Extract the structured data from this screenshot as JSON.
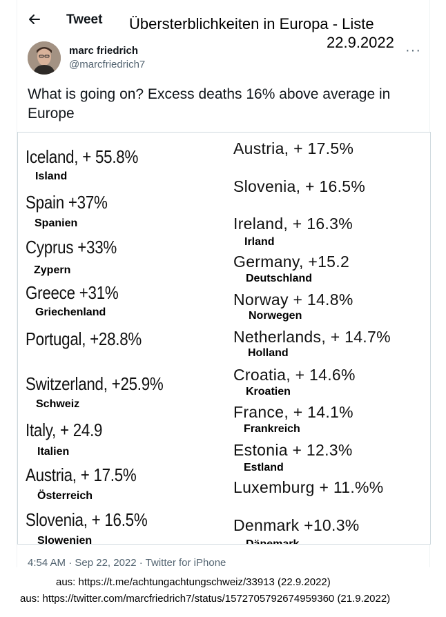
{
  "header": {
    "title": "Tweet"
  },
  "overlay": {
    "title": "Übersterblichkeiten in Europa - Liste",
    "date": "22.9.2022"
  },
  "author": {
    "name": "marc friedrich",
    "handle": "@marcfriedrich7"
  },
  "tweet": {
    "text": "What is going on? Excess deaths 16% above average in Europe"
  },
  "list_left": [
    {
      "country": "Iceland, + 55.8%",
      "label": "Island"
    },
    {
      "country": "Spain +37%",
      "label": "Spanien"
    },
    {
      "country": "Cyprus +33%",
      "label": "Zypern"
    },
    {
      "country": "Greece +31%",
      "label": "Griechenland"
    },
    {
      "country": "Portugal, +28.8%",
      "label": ""
    },
    {
      "country": "Switzerland, +25.9%",
      "label": "Schweiz"
    },
    {
      "country": "Italy, + 24.9",
      "label": "Italien"
    },
    {
      "country": "Austria, + 17.5%",
      "label": "Österreich"
    },
    {
      "country": "Slovenia, + 16.5%",
      "label": "Slowenien"
    }
  ],
  "list_right": [
    {
      "country": "Austria, + 17.5%",
      "label": ""
    },
    {
      "country": "Slovenia, + 16.5%",
      "label": ""
    },
    {
      "country": "Ireland, + 16.3%",
      "label": "Irland"
    },
    {
      "country": "Germany, +15.2",
      "label": "Deutschland"
    },
    {
      "country": "Norway + 14.8%",
      "label": "Norwegen"
    },
    {
      "country": "Netherlands, + 14.7%",
      "label": "Holland"
    },
    {
      "country": "Croatia, + 14.6%",
      "label": "Kroatien"
    },
    {
      "country": "France, + 14.1%",
      "label": "Frankreich"
    },
    {
      "country": "Estonia + 12.3%",
      "label": "Estland"
    },
    {
      "country": "Luxemburg + 11.%%",
      "label": ""
    },
    {
      "country": "Denmark +10.3%",
      "label": "Dänemark"
    }
  ],
  "meta": {
    "timestamp": "4:54 AM · Sep 22, 2022 · Twitter for iPhone"
  },
  "sources": [
    "aus: https://t.me/achtungachtungschweiz/33913 (22.9.2022)",
    "aus: https://twitter.com/marcfriedrich7/status/1572705792674959360 (21.9.2022)"
  ],
  "icons": {
    "back": "back-arrow-icon",
    "more": "more-icon"
  }
}
